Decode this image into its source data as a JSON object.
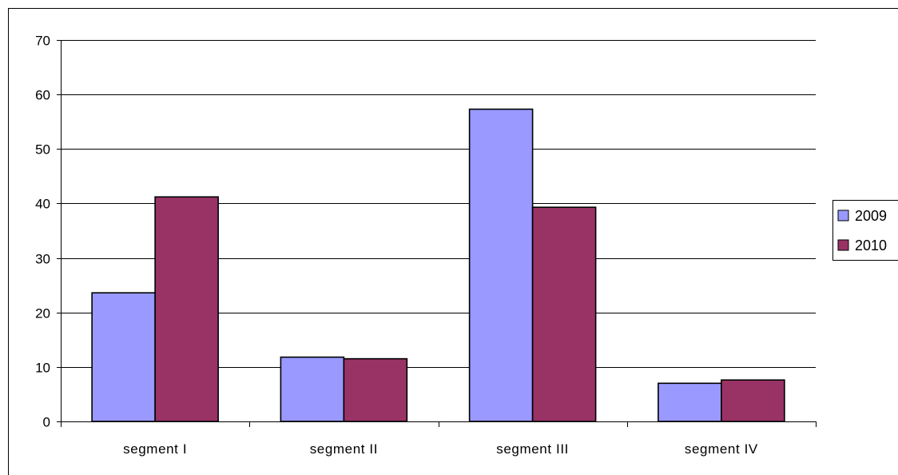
{
  "chart_data": {
    "type": "bar",
    "categories": [
      "segment I",
      "segment II",
      "segment III",
      "segment IV"
    ],
    "series": [
      {
        "name": "2009",
        "values": [
          23.6,
          11.8,
          57.3,
          7.0
        ],
        "color": "#9999ff"
      },
      {
        "name": "2010",
        "values": [
          41.2,
          11.5,
          39.3,
          7.6
        ],
        "color": "#993366"
      }
    ],
    "ylim": [
      0,
      70
    ],
    "yticks": [
      0,
      10,
      20,
      30,
      40,
      50,
      60,
      70
    ],
    "grid": true,
    "legend": "right"
  }
}
